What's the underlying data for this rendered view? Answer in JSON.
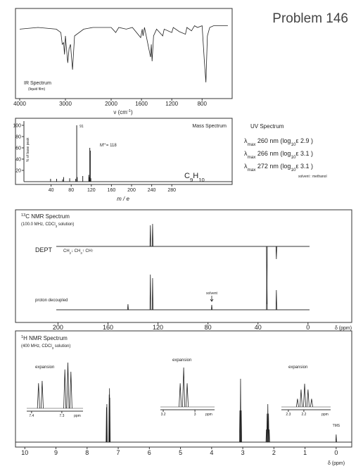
{
  "title": "Problem 146",
  "ir": {
    "type": "line",
    "label": "IR Spectrum",
    "sublabel": "(liquid film)",
    "xlabel": [
      {
        "text": "ν (cm"
      },
      {
        "text": "-1",
        "style": "sup"
      },
      {
        "text": ")"
      }
    ],
    "xlim": [
      4000,
      450
    ],
    "ylim": [
      0,
      100
    ],
    "xticks": [
      4000,
      3000,
      2000,
      1600,
      1200,
      800
    ],
    "x": [
      4000,
      3600,
      3200,
      3100,
      3070,
      3040,
      3020,
      3000,
      2950,
      2920,
      2890,
      2845,
      2800,
      2600,
      2400,
      2200,
      2000,
      1940,
      1900,
      1800,
      1720,
      1610,
      1590,
      1580,
      1560,
      1480,
      1470,
      1460,
      1440,
      1400,
      1320,
      1300,
      1200,
      1180,
      1100,
      1020,
      1000,
      940,
      900,
      860,
      800,
      770,
      750,
      730,
      700,
      650,
      460
    ],
    "values": [
      78,
      80,
      78,
      74,
      60,
      62,
      48,
      70,
      38,
      55,
      60,
      30,
      70,
      78,
      80,
      80,
      80,
      74,
      80,
      78,
      80,
      68,
      78,
      70,
      80,
      45,
      60,
      40,
      70,
      78,
      70,
      78,
      74,
      80,
      75,
      72,
      80,
      76,
      82,
      80,
      82,
      40,
      15,
      70,
      80,
      82,
      82
    ]
  },
  "mass": {
    "type": "stick",
    "label": "Mass Spectrum",
    "ylabel": "% of base peak",
    "xlabel": "m / e",
    "base_peak_label": "91",
    "molecular_ion_label": [
      {
        "text": "M"
      },
      {
        "text": "•+",
        "style": "sup"
      },
      {
        "text": "= 118"
      }
    ],
    "formula": [
      {
        "text": "C"
      },
      {
        "text": "9",
        "style": "sub"
      },
      {
        "text": "H"
      },
      {
        "text": "10",
        "style": "sub"
      }
    ],
    "xlim": [
      0,
      400
    ],
    "ylim": [
      0,
      105
    ],
    "xticks": [
      40,
      80,
      120,
      160,
      200,
      240,
      280
    ],
    "yticks": [
      20,
      40,
      60,
      80,
      100
    ],
    "x": [
      39,
      51,
      63,
      65,
      77,
      89,
      91,
      92,
      103,
      115,
      116,
      117,
      118,
      119
    ],
    "values": [
      5,
      5,
      4,
      8,
      6,
      5,
      100,
      8,
      10,
      12,
      8,
      60,
      55,
      6
    ]
  },
  "uv": {
    "title": "UV Spectrum",
    "bands": [
      [
        {
          "text": "λ"
        },
        {
          "text": "max",
          "style": "sub"
        },
        {
          "text": " 260 nm  (log"
        },
        {
          "text": "10",
          "style": "sub"
        },
        {
          "text": "ε  2.9 )"
        }
      ],
      [
        {
          "text": "λ"
        },
        {
          "text": "max",
          "style": "sub"
        },
        {
          "text": " 266 nm  (log"
        },
        {
          "text": "10",
          "style": "sub"
        },
        {
          "text": "ε  3.1 )"
        }
      ],
      [
        {
          "text": "λ"
        },
        {
          "text": "max",
          "style": "sub"
        },
        {
          "text": " 272 nm  (log"
        },
        {
          "text": "10",
          "style": "sub"
        },
        {
          "text": "ε  3.1 )"
        }
      ]
    ],
    "solvent": "solvent :   methanol"
  },
  "c13": {
    "label": [
      {
        "text": "13",
        "style": "sup"
      },
      {
        "text": "C NMR Spectrum"
      }
    ],
    "conditions": [
      {
        "text": "(100.0 MHz, CDCl"
      },
      {
        "text": "3",
        "style": "sub"
      },
      {
        "text": " solution)"
      }
    ],
    "dept_label": "DEPT",
    "dept_legend": [
      {
        "text": "CH"
      },
      {
        "text": "2",
        "style": "sub"
      },
      {
        "text": "↓  CH"
      },
      {
        "text": "3",
        "style": "sub"
      },
      {
        "text": "↑  CH↑"
      }
    ],
    "decoupled_label": "proton decoupled",
    "solvent_label": "solvent",
    "xlabel": "δ (ppm)",
    "xlim": [
      234,
      -35
    ],
    "xticks": [
      200,
      160,
      120,
      80,
      40,
      0
    ],
    "dept": {
      "type": "stick",
      "ylim": [
        -95,
        35
      ],
      "x": [
        126.1,
        124.3,
        32.9,
        25.3
      ],
      "values": [
        30,
        32,
        -82,
        -18
      ]
    },
    "decoupled": {
      "type": "stick",
      "ylim": [
        0,
        60
      ],
      "x": [
        144.0,
        126.1,
        124.3,
        77.0,
        32.9,
        25.3
      ],
      "values": [
        8,
        50,
        45,
        7,
        53,
        28
      ]
    }
  },
  "h1": {
    "type": "stick",
    "label": [
      {
        "text": "1",
        "style": "sup"
      },
      {
        "text": "H NMR Spectrum"
      }
    ],
    "conditions": [
      {
        "text": "(400 MHz, CDCl"
      },
      {
        "text": "3",
        "style": "sub"
      },
      {
        "text": " solution)"
      }
    ],
    "xlabel": "δ (ppm)",
    "tms_label": "TMS",
    "xlim": [
      10.3,
      -0.5
    ],
    "ylim": [
      0,
      100
    ],
    "xticks": [
      10,
      9,
      8,
      7,
      6,
      5,
      4,
      3,
      2,
      1,
      0
    ],
    "x": [
      7.377,
      7.365,
      7.29,
      7.28,
      7.27,
      3.093,
      3.071,
      3.049,
      2.241,
      2.218,
      2.195,
      2.173,
      2.15,
      0
    ],
    "values": [
      55,
      60,
      75,
      85,
      70,
      50,
      100,
      50,
      20,
      45,
      60,
      45,
      20,
      12
    ],
    "insets": [
      {
        "type": "stick",
        "label": "expansion",
        "unit": "ppm",
        "xlim": [
          7.416,
          7.23
        ],
        "ylim": [
          0,
          100
        ],
        "xticks": [
          7.4,
          7.3
        ],
        "x": [
          7.377,
          7.365,
          7.29,
          7.28,
          7.27
        ],
        "values": [
          55,
          60,
          85,
          100,
          80
        ]
      },
      {
        "type": "stick",
        "label": "expansion",
        "unit": "ppm",
        "xlim": [
          3.218,
          2.876
        ],
        "ylim": [
          0,
          100
        ],
        "xticks": [
          3.2,
          3.0
        ],
        "x": [
          3.093,
          3.071,
          3.049
        ],
        "values": [
          60,
          100,
          60
        ]
      },
      {
        "type": "stick",
        "label": "expansion",
        "unit": "ppm",
        "xlim": [
          2.345,
          2.027
        ],
        "ylim": [
          0,
          100
        ],
        "xticks": [
          2.3,
          2.2
        ],
        "x": [
          2.241,
          2.218,
          2.195,
          2.173,
          2.15
        ],
        "values": [
          35,
          75,
          100,
          75,
          35
        ]
      }
    ]
  }
}
